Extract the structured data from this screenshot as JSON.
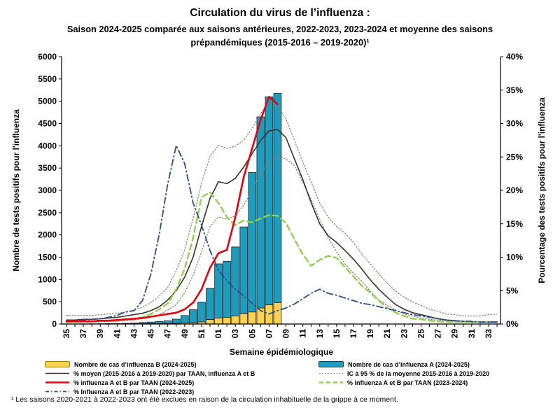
{
  "title": {
    "main": "Circulation du virus de l’influenza :",
    "subtitle": "Saison 2024-2025 comparée aux saisons antérieures, 2022-2023, 2023-2024 et moyenne des saisons prépandémiques  (2015-2016 – 2019-2020)¹"
  },
  "footnote": "¹ Les saisons 2020-2021 à 2022-2023 ont été exclues en raison de la circulation inhabituelle de la grippe à ce moment.",
  "palette": {
    "bar_a_fill": "#1B9DC0",
    "bar_b_fill": "#FFD34D",
    "bar_stroke": "#1F1F1F",
    "swatch_b_border": "#9C7A00",
    "swatch_a_border": "#17404E",
    "line_moyen": "#3A2E2A",
    "line_ic": "#8A7B72",
    "line_2425": "#E8000B",
    "line_2324": "#92D050",
    "line_2223": "#2A4D8F",
    "axis": "#000000"
  },
  "legend": {
    "col1": [
      {
        "id": "cas-b",
        "label": "Nombre de cas d’influenza B (2024-2025)"
      },
      {
        "id": "moyenne",
        "label": "% moyen (2015-2016 à 2019-2020) par TAAN, influenza A et B"
      },
      {
        "id": "taan-2024-2025",
        "label": "% influenza A et B par TAAN (2024-2025)"
      },
      {
        "id": "taan-2022-2023",
        "label": "% Influenza A et B par TAAN (2022-2023)"
      }
    ],
    "col2": [
      {
        "id": "cas-a",
        "label": "Nombre de cas d’influenza A (2024-2025)"
      },
      {
        "id": "ic95",
        "label": "IC à 95 % de la moyenne 2015-2016 à 2019-2020"
      },
      {
        "id": "taan-2023-2024",
        "label": "% influenza A et B par TAAN (2023-2024)"
      }
    ]
  },
  "chart_data": {
    "type": "combo-bar-line",
    "xlabel": "Semaine épidémiologique",
    "x_weeks": [
      "35",
      "36",
      "37",
      "38",
      "39",
      "40",
      "41",
      "42",
      "43",
      "44",
      "45",
      "46",
      "47",
      "48",
      "49",
      "50",
      "51",
      "52",
      "01",
      "02",
      "03",
      "04",
      "05",
      "06",
      "07",
      "08",
      "09",
      "10",
      "11",
      "12",
      "13",
      "14",
      "15",
      "16",
      "17",
      "18",
      "19",
      "20",
      "21",
      "22",
      "23",
      "24",
      "25",
      "26",
      "27",
      "28",
      "29",
      "30",
      "31",
      "32",
      "33",
      "34"
    ],
    "x_tick_labels": [
      "35",
      "37",
      "39",
      "41",
      "43",
      "45",
      "47",
      "49",
      "51",
      "01",
      "03",
      "05",
      "07",
      "09",
      "11",
      "13",
      "15",
      "17",
      "19",
      "21",
      "23",
      "25",
      "27",
      "29",
      "31",
      "33"
    ],
    "y_left": {
      "label": "Nombre de tests positifs pour l'influenza",
      "max": 6000,
      "step": 500,
      "tick_labels": [
        "0",
        "500",
        "1000",
        "1500",
        "2000",
        "2500",
        "3000",
        "3500",
        "4000",
        "4500",
        "5000",
        "5500",
        "6000"
      ]
    },
    "y_right": {
      "label": "Pourcentage des tests positifs pour l'influenza",
      "max": 40,
      "step": 5,
      "tick_labels": [
        "0%",
        "5%",
        "10%",
        "15%",
        "20%",
        "25%",
        "30%",
        "35%",
        "40%"
      ]
    },
    "bars": {
      "influenza_b": {
        "id": "cas-influenza-b-2024-2025",
        "values": [
          1,
          1,
          1,
          1,
          1,
          2,
          2,
          3,
          4,
          5,
          6,
          8,
          10,
          15,
          22,
          30,
          45,
          100,
          135,
          150,
          180,
          230,
          270,
          360,
          430,
          480,
          null,
          null,
          null,
          null,
          null,
          null,
          null,
          null,
          null,
          null,
          null,
          null,
          null,
          null,
          null,
          null,
          null,
          null,
          null,
          null,
          null,
          null,
          null,
          null,
          null,
          null
        ]
      },
      "influenza_a": {
        "id": "cas-influenza-a-2024-2025",
        "values": [
          2,
          2,
          3,
          4,
          5,
          7,
          9,
          13,
          18,
          28,
          38,
          48,
          63,
          95,
          168,
          290,
          445,
          700,
          1215,
          1260,
          1550,
          1950,
          3130,
          4290,
          4670,
          4695,
          null,
          null,
          null,
          null,
          null,
          null,
          null,
          null,
          null,
          null,
          null,
          null,
          null,
          null,
          null,
          null,
          null,
          null,
          null,
          null,
          null,
          null,
          null,
          null,
          null,
          null
        ]
      }
    },
    "lines": [
      {
        "id": "ic95-haut",
        "color_key": "line_ic",
        "stroke_width": 1.2,
        "dash": "1.5 2.6",
        "values": [
          1.3,
          1.3,
          1.3,
          1.3,
          1.4,
          1.5,
          1.6,
          1.8,
          2.1,
          2.5,
          3.2,
          4.2,
          5.5,
          8.0,
          11.1,
          15.8,
          21.1,
          25.1,
          26.7,
          26.3,
          26.6,
          27.5,
          29.3,
          31.5,
          33.0,
          32.5,
          30.7,
          27.5,
          24.2,
          21.2,
          18.1,
          16.0,
          14.6,
          13.6,
          12.2,
          10.4,
          9.0,
          7.5,
          6.1,
          4.9,
          4.0,
          3.3,
          2.8,
          2.2,
          1.9,
          1.5,
          1.4,
          1.2,
          1.2,
          1.2,
          1.4,
          1.5
        ]
      },
      {
        "id": "ic95-bas",
        "color_key": "line_ic",
        "stroke_width": 1.2,
        "dash": "1.5 2.6",
        "values": [
          0.3,
          0.3,
          0.3,
          0.3,
          0.3,
          0.4,
          0.4,
          0.5,
          0.6,
          0.8,
          1.0,
          1.4,
          2.1,
          2.9,
          4.7,
          7.3,
          10.8,
          14.6,
          16.0,
          15.7,
          16.2,
          17.8,
          20.0,
          22.5,
          24.3,
          25.1,
          24.7,
          23.7,
          21.2,
          18.6,
          15.7,
          12.9,
          10.8,
          9.0,
          7.6,
          6.4,
          4.9,
          3.6,
          2.8,
          2.1,
          1.5,
          1.2,
          0.9,
          0.7,
          0.6,
          0.5,
          0.4,
          0.3,
          0.3,
          0.2,
          0.2,
          0.2
        ]
      },
      {
        "id": "moyenne-2015-2019",
        "color_key": "line_moyen",
        "stroke_width": 1.6,
        "dash": "",
        "values": [
          0.6,
          0.6,
          0.7,
          0.7,
          0.8,
          0.9,
          1.0,
          1.2,
          1.4,
          1.6,
          2.0,
          2.6,
          3.6,
          5.0,
          7.0,
          10.0,
          14.6,
          18.8,
          21.3,
          21.0,
          21.8,
          23.5,
          25.5,
          27.5,
          28.9,
          29.1,
          27.9,
          24.7,
          21.6,
          18.1,
          15.0,
          13.2,
          12.2,
          11.0,
          9.7,
          8.2,
          6.6,
          5.2,
          4.0,
          2.9,
          2.2,
          1.7,
          1.4,
          1.1,
          0.8,
          0.6,
          0.5,
          0.4,
          0.3,
          0.3,
          0.3,
          0.3
        ]
      },
      {
        "id": "taan-2023-2024",
        "color_key": "line_2324",
        "stroke_width": 2.4,
        "dash": "8 5",
        "values": [
          0.3,
          0.3,
          0.4,
          0.4,
          0.5,
          0.5,
          0.6,
          0.7,
          0.8,
          1.0,
          1.5,
          2.2,
          3.1,
          5.2,
          8.3,
          12.9,
          19.0,
          19.7,
          18.1,
          16.0,
          14.8,
          15.5,
          15.2,
          15.8,
          16.3,
          16.2,
          15.1,
          12.7,
          10.4,
          8.7,
          9.6,
          10.2,
          9.9,
          8.5,
          7.1,
          5.7,
          4.7,
          3.5,
          2.4,
          1.7,
          1.2,
          0.8,
          0.7,
          0.5,
          0.4,
          0.3,
          0.3,
          0.3,
          0.3,
          0.3,
          0.3,
          0.3
        ]
      },
      {
        "id": "taan-2022-2023",
        "color_key": "line_2223",
        "stroke_width": 1.8,
        "dash": "9 4 1.5 4",
        "values": [
          0.5,
          0.5,
          0.6,
          0.7,
          0.8,
          1.0,
          1.3,
          1.8,
          2.0,
          3.5,
          7.5,
          13.5,
          21.0,
          26.7,
          24.0,
          18.1,
          14.8,
          11.0,
          8.0,
          6.5,
          5.2,
          4.2,
          3.1,
          2.0,
          1.5,
          2.0,
          2.4,
          3.0,
          3.8,
          4.6,
          5.2,
          4.6,
          4.3,
          3.9,
          3.5,
          3.1,
          2.9,
          2.6,
          2.3,
          2.0,
          1.7,
          1.4,
          1.2,
          1.0,
          0.8,
          0.6,
          0.5,
          0.4,
          0.4,
          0.3,
          0.3,
          0.3
        ]
      },
      {
        "id": "taan-2024-2025",
        "color_key": "line_2425",
        "stroke_width": 2.6,
        "dash": "",
        "values": [
          0.4,
          0.4,
          0.4,
          0.4,
          0.5,
          0.5,
          0.6,
          0.7,
          0.8,
          0.9,
          1.1,
          1.3,
          1.5,
          1.7,
          2.2,
          3.2,
          5.2,
          8.4,
          10.6,
          11.1,
          16.0,
          22.0,
          26.3,
          30.6,
          34.0,
          32.9,
          null,
          null,
          null,
          null,
          null,
          null,
          null,
          null,
          null,
          null,
          null,
          null,
          null,
          null,
          null,
          null,
          null,
          null,
          null,
          null,
          null,
          null,
          null,
          null,
          null,
          null
        ]
      }
    ]
  }
}
